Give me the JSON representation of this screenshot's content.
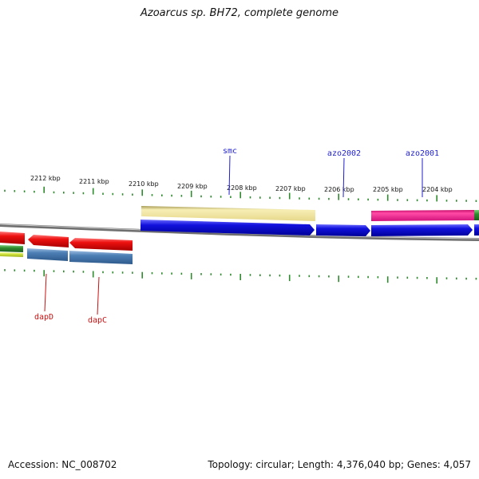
{
  "title": "Azoarcus sp. BH72, complete genome",
  "accession": "Accession: NC_008702",
  "summary": "Topology: circular; Length: 4,376,040 bp; Genes: 4,057",
  "colors": {
    "backbone": "#8a8a8a",
    "tick": "#2e8b2e",
    "label_blue": "#1f1fd1",
    "label_red": "#cc1111",
    "gene_red": "#ee1111",
    "gene_steel": "#4d7fb5",
    "gene_blue": "#1111dd",
    "gene_khaki": "#ede29a",
    "gene_pink": "#ee1c8a",
    "gene_green": "#3ea63e",
    "gene_yellow": "#d8e84a"
  },
  "kbp_ticks": [
    {
      "label": "2212 kbp"
    },
    {
      "label": "2211 kbp"
    },
    {
      "label": "2210 kbp"
    },
    {
      "label": "2209 kbp"
    },
    {
      "label": "2208 kbp"
    },
    {
      "label": "2207 kbp"
    },
    {
      "label": "2206 kbp"
    },
    {
      "label": "2205 kbp"
    },
    {
      "label": "2204 kbp"
    }
  ],
  "gene_labels": [
    {
      "text": "smc",
      "strand": "forward"
    },
    {
      "text": "azo2002",
      "strand": "forward"
    },
    {
      "text": "azo2001",
      "strand": "forward"
    },
    {
      "text": "dapD",
      "strand": "reverse"
    },
    {
      "text": "dapC",
      "strand": "reverse"
    }
  ]
}
